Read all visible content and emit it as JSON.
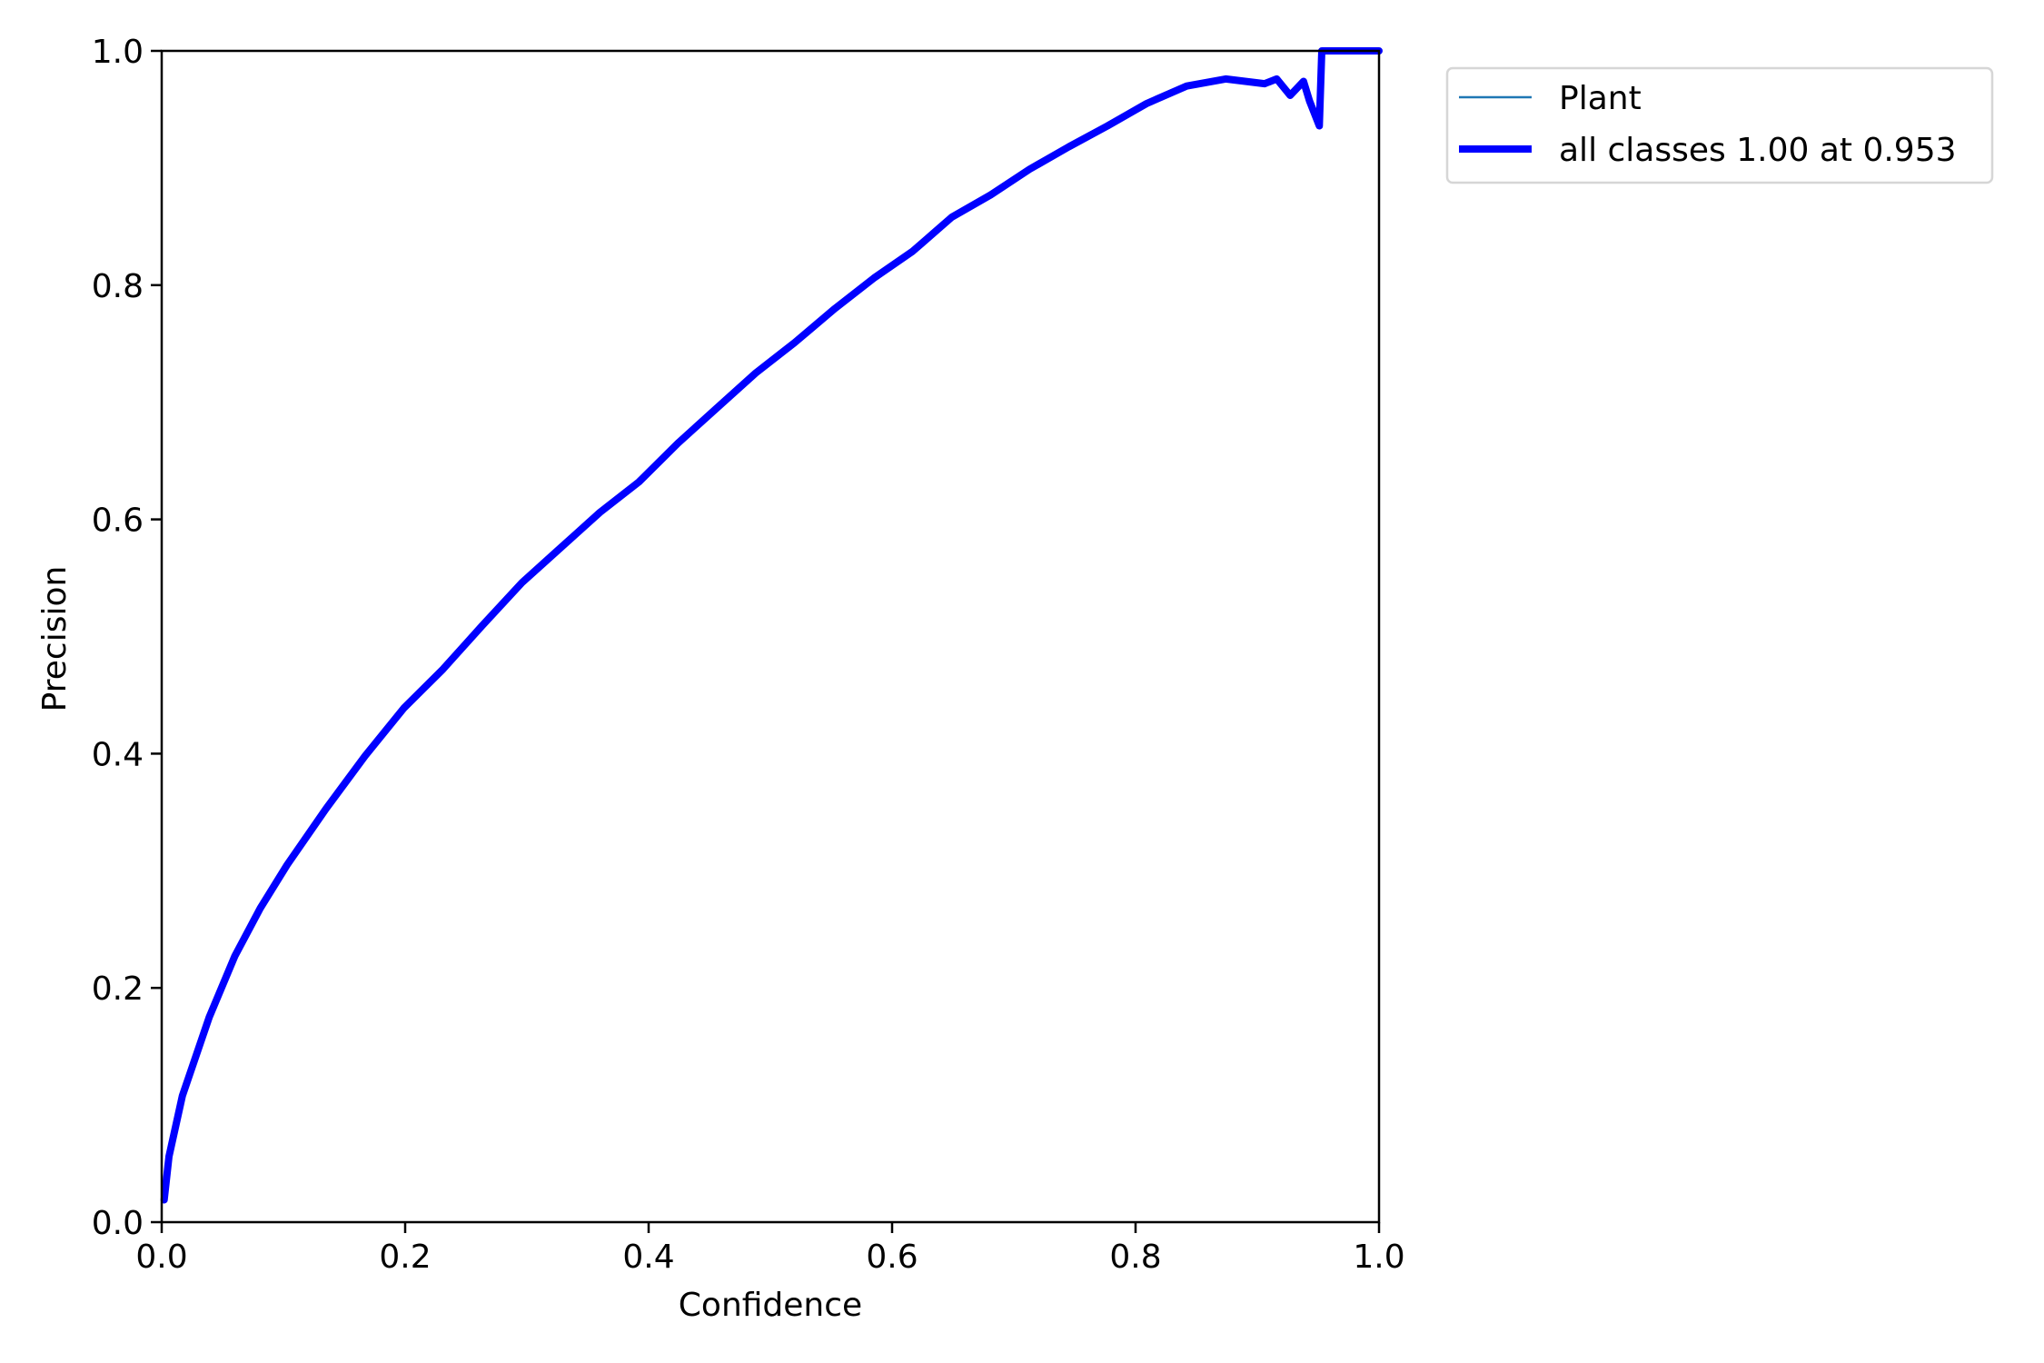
{
  "chart_data": {
    "type": "line",
    "title": "",
    "xlabel": "Confidence",
    "ylabel": "Precision",
    "xlim": [
      0,
      1
    ],
    "ylim": [
      0,
      1
    ],
    "grid": false,
    "legend_position": "outside-top-right",
    "xticks": [
      "0.0",
      "0.2",
      "0.4",
      "0.6",
      "0.8",
      "1.0"
    ],
    "yticks": [
      "0.0",
      "0.2",
      "0.4",
      "0.6",
      "0.8",
      "1.0"
    ],
    "series": [
      {
        "name": "Plant",
        "color": "#1f77b4",
        "x": [
          0.002,
          0.006,
          0.017,
          0.039,
          0.06,
          0.081,
          0.103,
          0.135,
          0.167,
          0.199,
          0.231,
          0.263,
          0.296,
          0.328,
          0.36,
          0.392,
          0.424,
          0.456,
          0.488,
          0.52,
          0.553,
          0.585,
          0.617,
          0.649,
          0.681,
          0.713,
          0.745,
          0.777,
          0.809,
          0.842,
          0.874,
          0.906,
          0.916,
          0.927,
          0.938,
          0.943,
          0.951,
          0.953,
          1.0
        ],
        "y": [
          0.019,
          0.056,
          0.108,
          0.175,
          0.227,
          0.268,
          0.305,
          0.353,
          0.398,
          0.439,
          0.472,
          0.509,
          0.546,
          0.576,
          0.606,
          0.632,
          0.665,
          0.695,
          0.725,
          0.751,
          0.78,
          0.806,
          0.829,
          0.858,
          0.877,
          0.899,
          0.918,
          0.936,
          0.955,
          0.97,
          0.976,
          0.972,
          0.976,
          0.962,
          0.974,
          0.957,
          0.936,
          1.0,
          1.0
        ]
      },
      {
        "name": "all classes 1.00 at 0.953",
        "color": "#0000ff",
        "x": [
          0.002,
          0.006,
          0.017,
          0.039,
          0.06,
          0.081,
          0.103,
          0.135,
          0.167,
          0.199,
          0.231,
          0.263,
          0.296,
          0.328,
          0.36,
          0.392,
          0.424,
          0.456,
          0.488,
          0.52,
          0.553,
          0.585,
          0.617,
          0.649,
          0.681,
          0.713,
          0.745,
          0.777,
          0.809,
          0.842,
          0.874,
          0.906,
          0.916,
          0.927,
          0.938,
          0.943,
          0.951,
          0.953,
          1.0
        ],
        "y": [
          0.019,
          0.056,
          0.108,
          0.175,
          0.227,
          0.268,
          0.305,
          0.353,
          0.398,
          0.439,
          0.472,
          0.509,
          0.546,
          0.576,
          0.606,
          0.632,
          0.665,
          0.695,
          0.725,
          0.751,
          0.78,
          0.806,
          0.829,
          0.858,
          0.877,
          0.899,
          0.918,
          0.936,
          0.955,
          0.97,
          0.976,
          0.972,
          0.976,
          0.962,
          0.974,
          0.957,
          0.936,
          1.0,
          1.0
        ]
      }
    ]
  }
}
